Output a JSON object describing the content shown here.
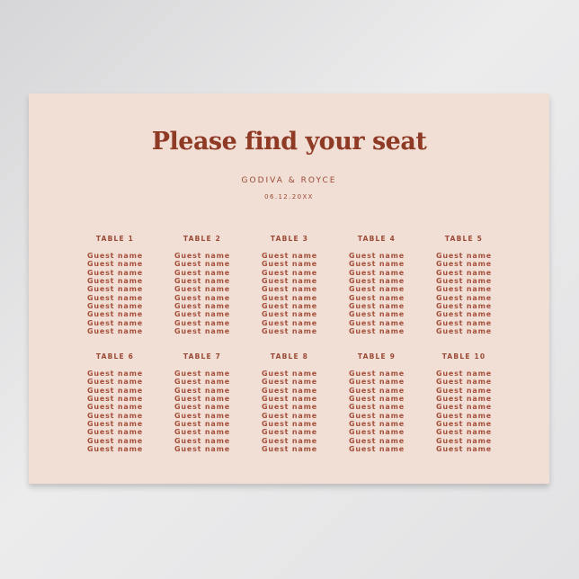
{
  "title": "Please find your seat",
  "couple": "GODIVA & ROYCE",
  "date": "06.12.20XX",
  "colors": {
    "background": "#f1ded5",
    "text": "#8f3a24"
  },
  "tables": [
    {
      "label": "TABLE 1",
      "guests": [
        "Guest name",
        "Guest name",
        "Guest name",
        "Guest name",
        "Guest name",
        "Guest name",
        "Guest name",
        "Guest name",
        "Guest name",
        "Guest name"
      ]
    },
    {
      "label": "TABLE 2",
      "guests": [
        "Guest name",
        "Guest name",
        "Guest name",
        "Guest name",
        "Guest name",
        "Guest name",
        "Guest name",
        "Guest name",
        "Guest name",
        "Guest name"
      ]
    },
    {
      "label": "TABLE 3",
      "guests": [
        "Guest name",
        "Guest name",
        "Guest name",
        "Guest name",
        "Guest name",
        "Guest name",
        "Guest name",
        "Guest name",
        "Guest name",
        "Guest name"
      ]
    },
    {
      "label": "TABLE 4",
      "guests": [
        "Guest name",
        "Guest name",
        "Guest name",
        "Guest name",
        "Guest name",
        "Guest name",
        "Guest name",
        "Guest name",
        "Guest name",
        "Guest name"
      ]
    },
    {
      "label": "TABLE 5",
      "guests": [
        "Guest name",
        "Guest name",
        "Guest name",
        "Guest name",
        "Guest name",
        "Guest name",
        "Guest name",
        "Guest name",
        "Guest name",
        "Guest name"
      ]
    },
    {
      "label": "TABLE 6",
      "guests": [
        "Guest name",
        "Guest name",
        "Guest name",
        "Guest name",
        "Guest name",
        "Guest name",
        "Guest name",
        "Guest name",
        "Guest name",
        "Guest name"
      ]
    },
    {
      "label": "TABLE 7",
      "guests": [
        "Guest name",
        "Guest name",
        "Guest name",
        "Guest name",
        "Guest name",
        "Guest name",
        "Guest name",
        "Guest name",
        "Guest name",
        "Guest name"
      ]
    },
    {
      "label": "TABLE 8",
      "guests": [
        "Guest name",
        "Guest name",
        "Guest name",
        "Guest name",
        "Guest name",
        "Guest name",
        "Guest name",
        "Guest name",
        "Guest name",
        "Guest name"
      ]
    },
    {
      "label": "TABLE 9",
      "guests": [
        "Guest name",
        "Guest name",
        "Guest name",
        "Guest name",
        "Guest name",
        "Guest name",
        "Guest name",
        "Guest name",
        "Guest name",
        "Guest name"
      ]
    },
    {
      "label": "TABLE 10",
      "guests": [
        "Guest name",
        "Guest name",
        "Guest name",
        "Guest name",
        "Guest name",
        "Guest name",
        "Guest name",
        "Guest name",
        "Guest name",
        "Guest name"
      ]
    }
  ]
}
